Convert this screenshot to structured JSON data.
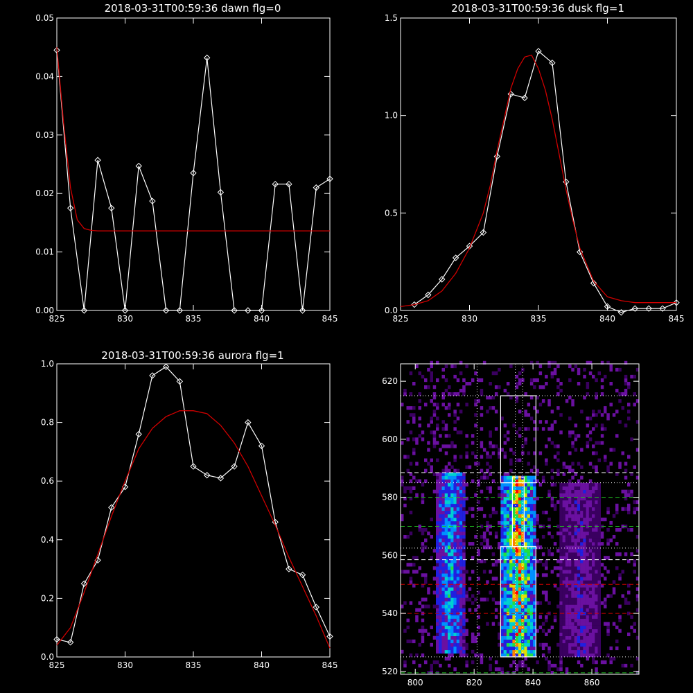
{
  "chart_data": [
    {
      "id": "dawn",
      "type": "line",
      "title": "2018-03-31T00:59:36 dawn flg=0",
      "xlim": [
        825,
        845
      ],
      "ylim": [
        0,
        0.05
      ],
      "xticks": [
        825,
        830,
        835,
        840,
        845
      ],
      "xtick_labels": [
        "825",
        "830",
        "835",
        "840",
        "845"
      ],
      "yticks": [
        0,
        0.01,
        0.02,
        0.03,
        0.04,
        0.05
      ],
      "ytick_labels": [
        "0.00",
        "0.01",
        "0.02",
        "0.03",
        "0.04",
        "0.05"
      ],
      "series": [
        {
          "role": "observed",
          "color": "#ffffff",
          "marker": "diamond",
          "x": [
            825,
            826,
            827,
            828,
            829,
            830,
            831,
            832,
            833,
            834,
            835,
            836,
            837,
            838,
            839,
            840,
            841,
            842,
            843,
            844,
            845
          ],
          "y": [
            0.0445,
            0.0175,
            0.0,
            0.0257,
            0.0175,
            0.0,
            0.0247,
            0.0187,
            0.0,
            0.0,
            0.0235,
            0.0432,
            0.0202,
            0.0,
            0.0,
            0.0,
            0.0216,
            0.0216,
            0.0,
            0.021,
            0.0225
          ]
        },
        {
          "role": "fit",
          "color": "#d00000",
          "x": [
            825,
            825.5,
            826,
            826.5,
            827,
            827.5,
            828,
            829,
            830,
            835,
            840,
            845
          ],
          "y": [
            0.045,
            0.032,
            0.021,
            0.0155,
            0.014,
            0.0137,
            0.0136,
            0.0136,
            0.0136,
            0.0136,
            0.0136,
            0.0136
          ]
        }
      ]
    },
    {
      "id": "dusk",
      "type": "line",
      "title": "2018-03-31T00:59:36 dusk flg=1",
      "xlim": [
        825,
        845
      ],
      "ylim": [
        0,
        1.5
      ],
      "xticks": [
        825,
        830,
        835,
        840,
        845
      ],
      "xtick_labels": [
        "825",
        "830",
        "835",
        "840",
        "845"
      ],
      "yticks": [
        0,
        0.5,
        1.0,
        1.5
      ],
      "ytick_labels": [
        "0.0",
        "0.5",
        "1.0",
        "1.5"
      ],
      "series": [
        {
          "role": "observed",
          "color": "#ffffff",
          "marker": "diamond",
          "x": [
            826,
            827,
            828,
            829,
            830,
            831,
            832,
            833,
            834,
            835,
            836,
            837,
            838,
            839,
            840,
            841,
            842,
            843,
            844,
            845
          ],
          "y": [
            0.03,
            0.08,
            0.16,
            0.27,
            0.33,
            0.4,
            0.79,
            1.11,
            1.09,
            1.33,
            1.27,
            0.66,
            0.3,
            0.14,
            0.02,
            -0.01,
            0.01,
            0.01,
            0.01,
            0.04
          ]
        },
        {
          "role": "fit",
          "color": "#d00000",
          "x": [
            825,
            826,
            827,
            828,
            829,
            830,
            831,
            831.5,
            832,
            832.5,
            833,
            833.5,
            834,
            834.5,
            835,
            835.5,
            836,
            836.5,
            837,
            837.5,
            838,
            839,
            840,
            841,
            842,
            843,
            844,
            845
          ],
          "y": [
            0.02,
            0.03,
            0.05,
            0.1,
            0.19,
            0.32,
            0.5,
            0.64,
            0.82,
            0.98,
            1.14,
            1.24,
            1.3,
            1.31,
            1.24,
            1.13,
            0.98,
            0.8,
            0.62,
            0.46,
            0.32,
            0.15,
            0.07,
            0.05,
            0.04,
            0.04,
            0.04,
            0.04
          ]
        }
      ]
    },
    {
      "id": "aurora",
      "type": "line",
      "title": "2018-03-31T00:59:36 aurora flg=1",
      "xlim": [
        825,
        845
      ],
      "ylim": [
        0,
        1.0
      ],
      "xticks": [
        825,
        830,
        835,
        840,
        845
      ],
      "xtick_labels": [
        "825",
        "830",
        "835",
        "840",
        "845"
      ],
      "yticks": [
        0,
        0.2,
        0.4,
        0.6,
        0.8,
        1.0
      ],
      "ytick_labels": [
        "0.0",
        "0.2",
        "0.4",
        "0.6",
        "0.8",
        "1.0"
      ],
      "series": [
        {
          "role": "observed",
          "color": "#ffffff",
          "marker": "diamond",
          "x": [
            825,
            826,
            827,
            828,
            829,
            830,
            831,
            832,
            833,
            834,
            835,
            836,
            837,
            838,
            839,
            840,
            841,
            842,
            843,
            844,
            845
          ],
          "y": [
            0.06,
            0.05,
            0.25,
            0.33,
            0.51,
            0.58,
            0.76,
            0.96,
            0.99,
            0.94,
            0.65,
            0.62,
            0.61,
            0.65,
            0.8,
            0.72,
            0.46,
            0.3,
            0.28,
            0.17,
            0.07
          ]
        },
        {
          "role": "fit",
          "color": "#d00000",
          "x": [
            825,
            826,
            827,
            828,
            829,
            830,
            831,
            832,
            833,
            834,
            835,
            836,
            837,
            838,
            839,
            840,
            841,
            842,
            843,
            844,
            845
          ],
          "y": [
            0.04,
            0.1,
            0.22,
            0.35,
            0.48,
            0.6,
            0.71,
            0.78,
            0.82,
            0.84,
            0.84,
            0.83,
            0.79,
            0.73,
            0.65,
            0.55,
            0.45,
            0.34,
            0.24,
            0.14,
            0.03
          ]
        }
      ]
    },
    {
      "id": "image",
      "type": "heatmap",
      "title": "",
      "xlim": [
        795,
        876
      ],
      "ylim": [
        519,
        626
      ],
      "xticks": [
        800,
        820,
        840,
        860
      ],
      "xtick_labels": [
        "800",
        "820",
        "840",
        "860"
      ],
      "yticks": [
        520,
        540,
        560,
        580,
        600,
        620
      ],
      "ytick_labels": [
        "520",
        "540",
        "560",
        "580",
        "600",
        "620"
      ],
      "colormap": [
        "#3a0060",
        "#6a10a0",
        "#2020e0",
        "#0090ff",
        "#00d0d0",
        "#20e040",
        "#e0e000",
        "#ff8000",
        "#ff0000"
      ],
      "intensity_columns": [
        {
          "x_center": 812,
          "width": 10,
          "y_range": [
            526,
            588
          ],
          "peak": 0.55
        },
        {
          "x_center": 835,
          "width": 12,
          "y_range": [
            525,
            587
          ],
          "peak": 0.95
        },
        {
          "x_center": 856,
          "width": 14,
          "y_range": [
            525,
            585
          ],
          "peak": 0.25
        }
      ],
      "boxes": [
        {
          "x": [
            829,
            841
          ],
          "y": [
            585,
            615
          ],
          "color": "#ffffff"
        },
        {
          "x": [
            829,
            841
          ],
          "y": [
            525,
            563
          ],
          "color": "#ffffff"
        },
        {
          "x": [
            833,
            837
          ],
          "y": [
            563,
            587
          ],
          "color": "#ffffff"
        }
      ],
      "hlines": [
        {
          "y": 615,
          "color": "#ffffff",
          "style": "dotted"
        },
        {
          "y": 588.5,
          "color": "#ffffff",
          "style": "dashed"
        },
        {
          "y": 585,
          "color": "#ffffff",
          "style": "dotted"
        },
        {
          "y": 580,
          "color": "#20c020",
          "style": "dashed"
        },
        {
          "y": 570,
          "color": "#20c020",
          "style": "dashed"
        },
        {
          "y": 562.5,
          "color": "#ffffff",
          "style": "dotted"
        },
        {
          "y": 558.5,
          "color": "#ffffff",
          "style": "dashed"
        },
        {
          "y": 550,
          "color": "#d00000",
          "style": "dashed"
        },
        {
          "y": 540,
          "color": "#d00000",
          "style": "dashed"
        },
        {
          "y": 525,
          "color": "#ffffff",
          "style": "dotted"
        },
        {
          "y": 519.5,
          "color": "#20c020",
          "style": "dashed"
        }
      ],
      "vlines": [
        {
          "x": 821,
          "color": "#ffffff",
          "style": "dotted"
        },
        {
          "x": 834,
          "color": "#ffffff",
          "style": "dotted"
        },
        {
          "x": 836.5,
          "color": "#ffffff",
          "style": "dotted"
        }
      ]
    }
  ]
}
